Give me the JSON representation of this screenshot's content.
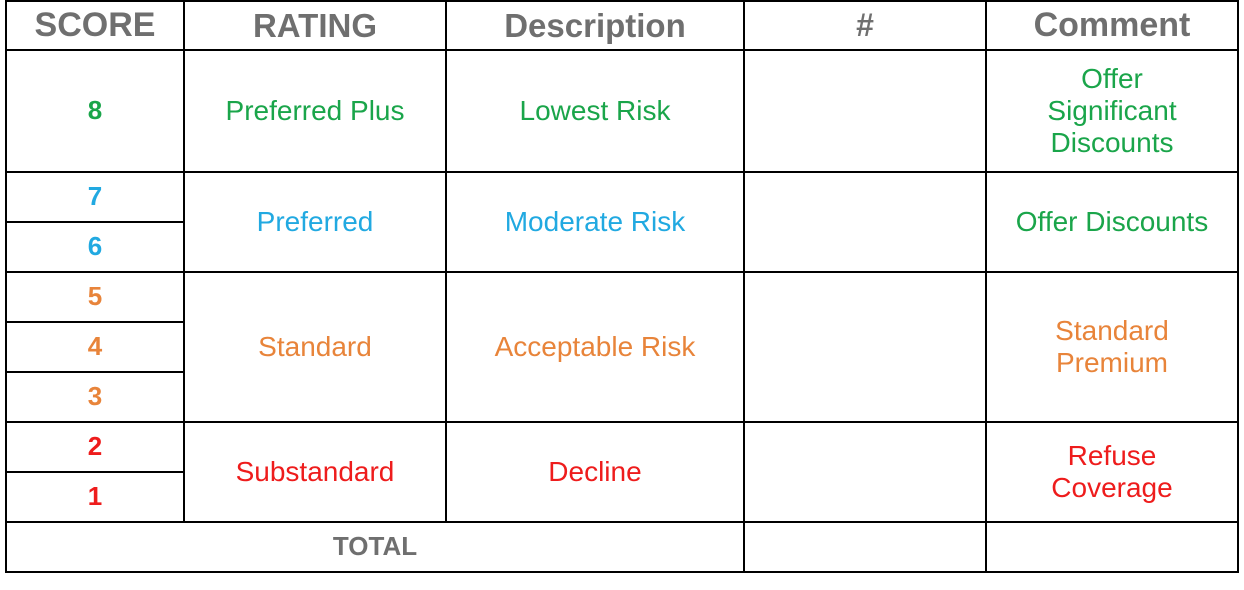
{
  "headers": {
    "score": "SCORE",
    "rating": "RATING",
    "description": "Description",
    "hash": "#",
    "comment": "Comment"
  },
  "colors": {
    "header_gray": "#6f6f6f",
    "preferred_plus": "#1aa54a",
    "preferred": "#21a9e1",
    "standard": "#e8843a",
    "substandard": "#ee1c1c",
    "border": "#000000"
  },
  "groups": {
    "preferred_plus": {
      "scores": [
        "8"
      ],
      "rating": "Preferred Plus",
      "description": "Lowest Risk",
      "comment_lines": [
        "Offer",
        "Significant",
        "Discounts"
      ]
    },
    "preferred": {
      "scores": [
        "7",
        "6"
      ],
      "rating": "Preferred",
      "description": "Moderate Risk",
      "comment": "Offer Discounts"
    },
    "standard": {
      "scores": [
        "5",
        "4",
        "3"
      ],
      "rating": "Standard",
      "description": "Acceptable Risk",
      "comment_lines": [
        "Standard",
        "Premium"
      ]
    },
    "substandard": {
      "scores": [
        "2",
        "1"
      ],
      "rating": "Substandard",
      "description": "Decline",
      "comment_lines": [
        "Refuse",
        "Coverage"
      ]
    }
  },
  "total_label": "TOTAL"
}
